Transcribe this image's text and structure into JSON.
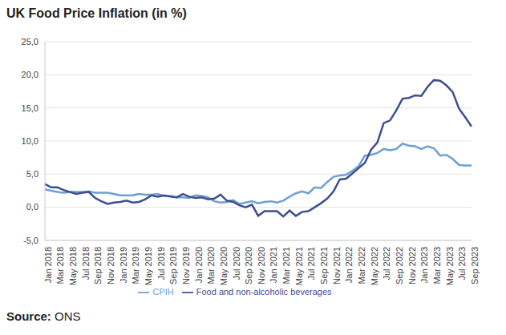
{
  "chart_data": {
    "type": "line",
    "title": "UK Food Price Inflation (in %)",
    "source": "Source: ONS",
    "categories": [
      "Jan 2018",
      null,
      "Mar 2018",
      null,
      "May 2018",
      null,
      "Jul 2018",
      null,
      "Sep 2018",
      null,
      "Nov 2018",
      null,
      "Jan 2019",
      null,
      "Mar 2019",
      null,
      "May 2019",
      null,
      "Jul 2019",
      null,
      "Sep 2019",
      null,
      "Nov 2019",
      null,
      "Jan 2020",
      null,
      "Mar 2020",
      null,
      "May 2020",
      null,
      "Jul 2020",
      null,
      "Sep 2020",
      null,
      "Nov 2020",
      null,
      "Jan 2021",
      null,
      "Mar 2021",
      null,
      "May 2021",
      null,
      "Jul 2021",
      null,
      "Sep 2021",
      null,
      "Nov 2021",
      null,
      "Jan 2022",
      null,
      "Mar 2022",
      null,
      "May 2022",
      null,
      "Jul 2022",
      null,
      "Sep 2022",
      null,
      "Nov 2022",
      null,
      "Jan 2023",
      null,
      "Mar 2023",
      null,
      "May 2023",
      null,
      "Jul 2023",
      null,
      "Sep 2023"
    ],
    "series": [
      {
        "name": "CPIH",
        "color": "#6f9fd3",
        "values": [
          2.7,
          2.5,
          2.3,
          2.2,
          2.3,
          2.3,
          2.3,
          2.4,
          2.2,
          2.2,
          2.2,
          2.0,
          1.8,
          1.8,
          1.8,
          2.0,
          1.9,
          1.9,
          2.0,
          1.7,
          1.7,
          1.5,
          1.5,
          1.4,
          1.8,
          1.7,
          1.5,
          0.9,
          0.7,
          0.8,
          1.1,
          0.5,
          0.7,
          0.9,
          0.6,
          0.8,
          0.9,
          0.7,
          1.0,
          1.6,
          2.1,
          2.4,
          2.1,
          3.0,
          2.9,
          3.8,
          4.6,
          4.8,
          4.9,
          5.5,
          6.2,
          7.8,
          7.9,
          8.2,
          8.8,
          8.6,
          8.8,
          9.6,
          9.3,
          9.2,
          8.8,
          9.2,
          8.9,
          7.8,
          7.9,
          7.3,
          6.4,
          6.3,
          6.3
        ]
      },
      {
        "name": "Food and non-alcoholic beverages",
        "color": "#3d4f8f",
        "values": [
          3.5,
          3.0,
          3.0,
          2.6,
          2.3,
          2.0,
          2.2,
          2.3,
          1.4,
          0.9,
          0.5,
          0.7,
          0.8,
          1.0,
          0.7,
          0.8,
          1.2,
          1.8,
          1.6,
          1.8,
          1.6,
          1.5,
          2.0,
          1.6,
          1.4,
          1.5,
          1.2,
          1.3,
          1.9,
          1.0,
          0.8,
          0.3,
          0.0,
          0.4,
          -1.3,
          -0.6,
          -0.6,
          -0.6,
          -1.4,
          -0.5,
          -1.3,
          -0.7,
          -0.6,
          0.0,
          0.6,
          1.3,
          2.4,
          4.2,
          4.3,
          5.1,
          5.9,
          6.7,
          8.7,
          9.8,
          12.7,
          13.1,
          14.6,
          16.4,
          16.5,
          16.9,
          16.8,
          18.2,
          19.2,
          19.1,
          18.4,
          17.4,
          14.9,
          13.6,
          12.2
        ]
      }
    ],
    "ylim": [
      -5,
      25
    ],
    "yticks": [
      {
        "value": -5,
        "label": "-5,0"
      },
      {
        "value": 0,
        "label": "0,0"
      },
      {
        "value": 5,
        "label": "5,0"
      },
      {
        "value": 10,
        "label": "10,0"
      },
      {
        "value": 15,
        "label": "15,0"
      },
      {
        "value": 20,
        "label": "20,0"
      },
      {
        "value": 25,
        "label": "25,0"
      }
    ],
    "grid": true,
    "legend": "bottom"
  }
}
